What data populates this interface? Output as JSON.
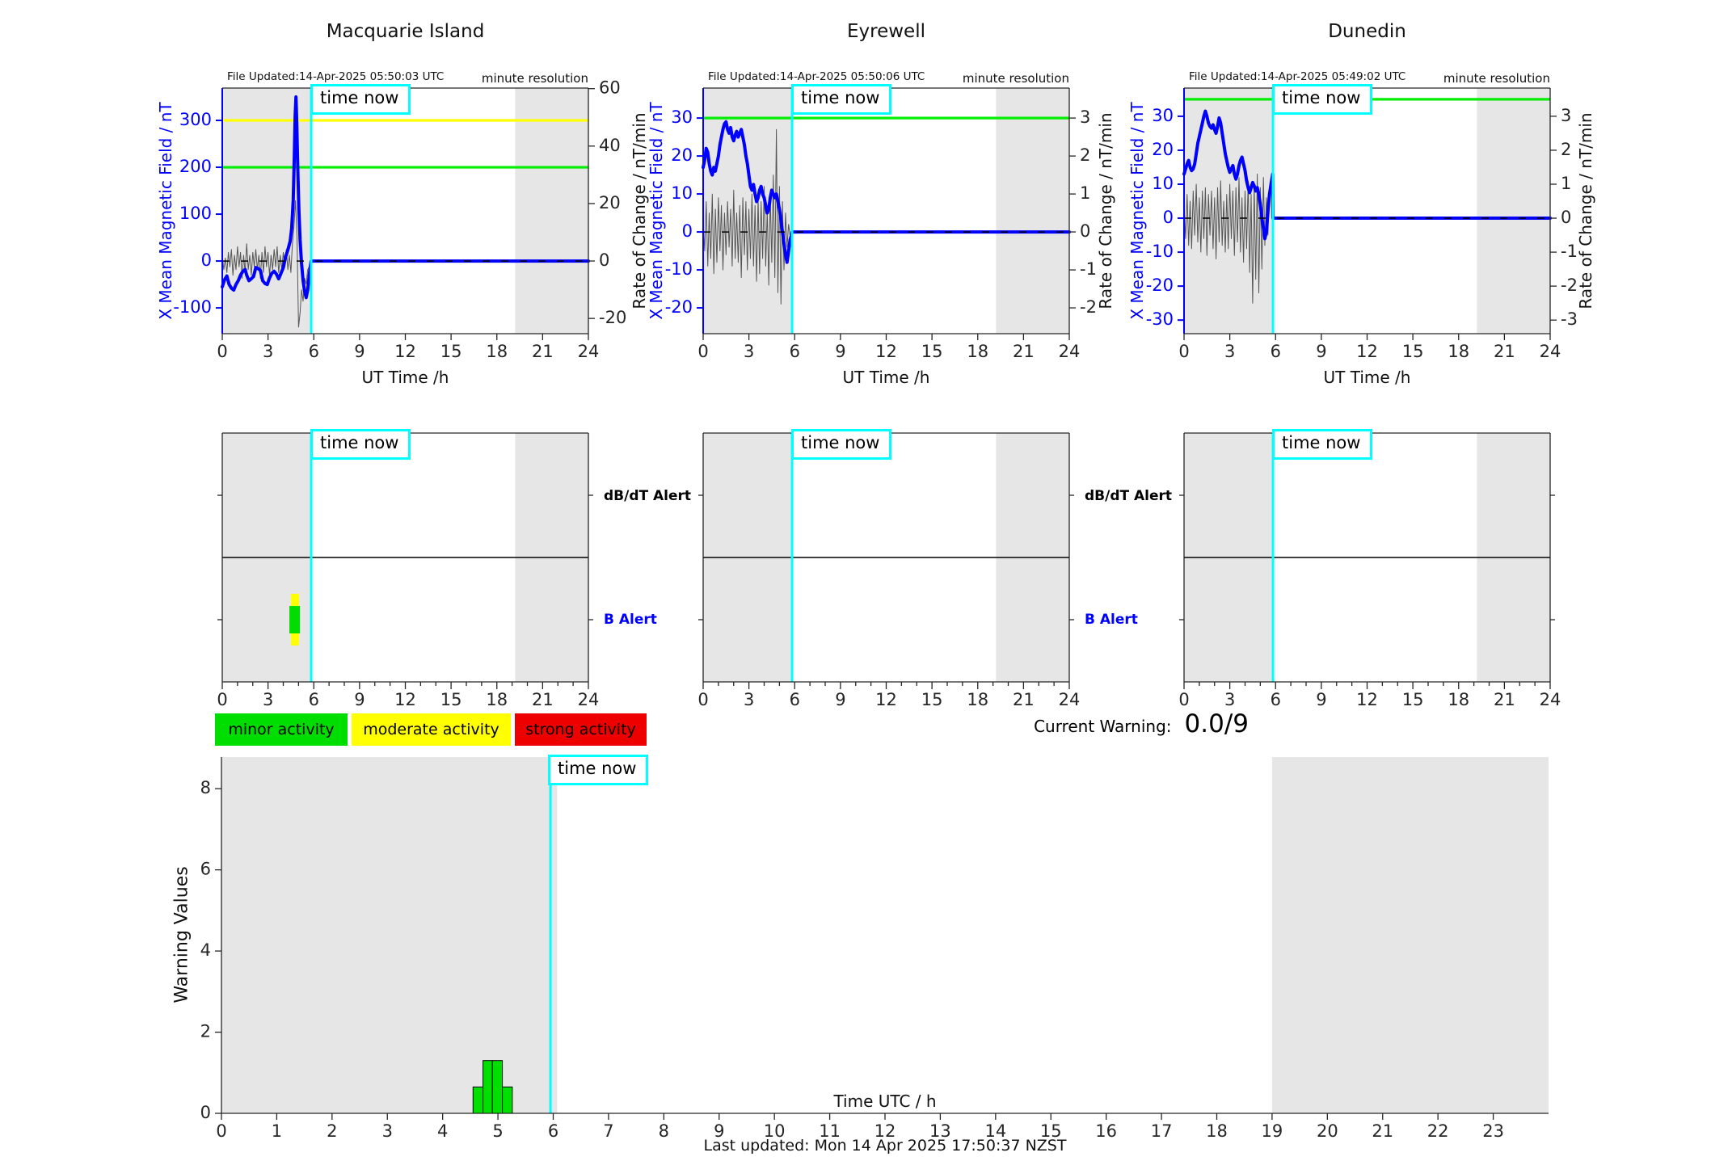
{
  "colors": {
    "field_line": "#0000ff",
    "rate_line": "#555555",
    "threshold_green": "#00ee00",
    "threshold_yellow": "#ffff00",
    "time_now_line": "#00ffff",
    "past_shade": "#e6e6e6",
    "legend_minor": "#00dd00",
    "legend_moderate": "#ffff00",
    "legend_strong": "#ee0000",
    "warning_bar": "#00e000",
    "axis": "#262626"
  },
  "stations": [
    {
      "title": "Macquarie Island",
      "file_updated": "File Updated:14-Apr-2025 05:50:03 UTC",
      "minute_resolution": "minute resolution",
      "time_now": "time now",
      "xlabel": "UT Time /h",
      "ylabel_left": "X Mean Magnetic Field / nT",
      "ylabel_right": "Rate of Change / nT/min",
      "alert_rows": {
        "db_dt": "dB/dT Alert",
        "b": "B Alert"
      }
    },
    {
      "title": "Eyrewell",
      "file_updated": "File Updated:14-Apr-2025 05:50:06 UTC",
      "minute_resolution": "minute resolution",
      "time_now": "time now",
      "xlabel": "UT Time /h",
      "ylabel_left": "X Mean Magnetic Field / nT",
      "ylabel_right": "Rate of Change / nT/min",
      "alert_rows": {
        "db_dt": "dB/dT Alert",
        "b": "B Alert"
      }
    },
    {
      "title": "Dunedin",
      "file_updated": "File Updated:14-Apr-2025 05:49:02 UTC",
      "minute_resolution": "minute resolution",
      "time_now": "time now",
      "xlabel": "UT Time /h",
      "ylabel_left": "X Mean Magnetic Field / nT",
      "ylabel_right": "Rate of Change / nT/min",
      "alert_rows": {
        "db_dt": "dB/dT Alert",
        "b": "B Alert"
      }
    }
  ],
  "legend": {
    "minor": "minor activity",
    "moderate": "moderate activity",
    "strong": "strong activity"
  },
  "current_warning": {
    "label": "Current Warning:",
    "value": "0.0/9"
  },
  "bottom": {
    "ylabel": "Warning Values",
    "xlabel": "Time UTC / h",
    "time_now": "time now"
  },
  "footer": {
    "last_updated": "Last updated: Mon 14 Apr 2025 17:50:37 NZST"
  },
  "chart_data": [
    {
      "type": "line",
      "title": "Macquarie Island",
      "xlabel": "UT Time /h",
      "ylabel_left": "X Mean Magnetic Field / nT",
      "ylabel_right": "Rate of Change / nT/min",
      "xlim": [
        0,
        24
      ],
      "xticks": [
        0,
        3,
        6,
        9,
        12,
        15,
        18,
        21,
        24
      ],
      "ylim_left": [
        -155,
        369
      ],
      "yticks_left": [
        -100,
        0,
        100,
        200,
        300
      ],
      "ylim_right": [
        -25.3,
        60.2
      ],
      "yticks_right": [
        -20,
        0,
        20,
        40,
        60
      ],
      "threshold_yellow": 300,
      "threshold_green": 200,
      "time_now_h": 5.83,
      "past_shade": [
        0,
        5.83
      ],
      "forecast_shade": [
        19.2,
        24
      ],
      "field_points": [
        [
          0,
          -55
        ],
        [
          0.15,
          -40
        ],
        [
          0.3,
          -32
        ],
        [
          0.45,
          -50
        ],
        [
          0.6,
          -58
        ],
        [
          0.75,
          -62
        ],
        [
          0.9,
          -50
        ],
        [
          1.05,
          -42
        ],
        [
          1.2,
          -30
        ],
        [
          1.35,
          -22
        ],
        [
          1.5,
          -18
        ],
        [
          1.6,
          -30
        ],
        [
          1.75,
          -42
        ],
        [
          1.9,
          -38
        ],
        [
          2.05,
          -33
        ],
        [
          2.2,
          -14
        ],
        [
          2.35,
          -16
        ],
        [
          2.5,
          -20
        ],
        [
          2.65,
          -42
        ],
        [
          2.8,
          -48
        ],
        [
          2.95,
          -50
        ],
        [
          3.1,
          -36
        ],
        [
          3.25,
          -26
        ],
        [
          3.4,
          -22
        ],
        [
          3.55,
          -28
        ],
        [
          3.7,
          -38
        ],
        [
          3.85,
          -26
        ],
        [
          4.0,
          -14
        ],
        [
          4.15,
          8
        ],
        [
          4.3,
          24
        ],
        [
          4.45,
          42
        ],
        [
          4.55,
          70
        ],
        [
          4.65,
          130
        ],
        [
          4.72,
          220
        ],
        [
          4.78,
          310
        ],
        [
          4.83,
          350
        ],
        [
          4.88,
          300
        ],
        [
          4.95,
          200
        ],
        [
          5.02,
          110
        ],
        [
          5.1,
          45
        ],
        [
          5.2,
          -5
        ],
        [
          5.3,
          -42
        ],
        [
          5.4,
          -65
        ],
        [
          5.5,
          -78
        ],
        [
          5.6,
          -62
        ],
        [
          5.7,
          -30
        ],
        [
          5.78,
          -10
        ],
        [
          5.83,
          0
        ],
        [
          24,
          0
        ]
      ],
      "rate_t0": 0,
      "rate_dt": 0.1,
      "rate_values": [
        2,
        -3,
        1,
        -4,
        3,
        -2,
        4,
        -5,
        2,
        -3,
        5,
        -2,
        3,
        -6,
        2,
        -4,
        6,
        -3,
        2,
        -5,
        3,
        -2,
        4,
        -3,
        2,
        -6,
        3,
        -4,
        5,
        -2,
        3,
        -5,
        2,
        -3,
        4,
        -2,
        5,
        -4,
        2,
        -3,
        3,
        -2,
        4,
        -3,
        2,
        -4,
        6,
        12,
        21,
        8,
        -23,
        -18,
        -10,
        -14,
        -6,
        -8,
        -3,
        -2,
        -1
      ]
    },
    {
      "type": "line",
      "title": "Eyrewell",
      "xlabel": "UT Time /h",
      "ylabel_left": "X Mean Magnetic Field / nT",
      "ylabel_right": "Rate of Change / nT/min",
      "xlim": [
        0,
        24
      ],
      "xticks": [
        0,
        3,
        6,
        9,
        12,
        15,
        18,
        21,
        24
      ],
      "ylim_left": [
        -26.8,
        37.9
      ],
      "yticks_left": [
        -20,
        -10,
        0,
        10,
        20,
        30
      ],
      "ylim_right": [
        -2.68,
        3.79
      ],
      "yticks_right": [
        -2,
        -1,
        0,
        1,
        2,
        3
      ],
      "threshold_green": 30,
      "time_now_h": 5.83,
      "past_shade": [
        0,
        5.83
      ],
      "forecast_shade": [
        19.2,
        24
      ],
      "field_points": [
        [
          0,
          17
        ],
        [
          0.1,
          19
        ],
        [
          0.2,
          22
        ],
        [
          0.3,
          21
        ],
        [
          0.4,
          18
        ],
        [
          0.5,
          16
        ],
        [
          0.6,
          15
        ],
        [
          0.7,
          17
        ],
        [
          0.8,
          16
        ],
        [
          0.9,
          18
        ],
        [
          1.0,
          20
        ],
        [
          1.1,
          23
        ],
        [
          1.2,
          25
        ],
        [
          1.3,
          27
        ],
        [
          1.4,
          28.5
        ],
        [
          1.5,
          29
        ],
        [
          1.6,
          27
        ],
        [
          1.7,
          26
        ],
        [
          1.8,
          27.5
        ],
        [
          1.9,
          25
        ],
        [
          2.0,
          24
        ],
        [
          2.1,
          25.5
        ],
        [
          2.2,
          26.5
        ],
        [
          2.3,
          25
        ],
        [
          2.4,
          26
        ],
        [
          2.5,
          27
        ],
        [
          2.6,
          25
        ],
        [
          2.7,
          23
        ],
        [
          2.8,
          20
        ],
        [
          2.9,
          18
        ],
        [
          3.0,
          15
        ],
        [
          3.1,
          12
        ],
        [
          3.2,
          11
        ],
        [
          3.3,
          12.5
        ],
        [
          3.4,
          10
        ],
        [
          3.5,
          8
        ],
        [
          3.6,
          9
        ],
        [
          3.7,
          11
        ],
        [
          3.8,
          12
        ],
        [
          3.9,
          10
        ],
        [
          4.0,
          9
        ],
        [
          4.1,
          7
        ],
        [
          4.2,
          5
        ],
        [
          4.3,
          6
        ],
        [
          4.4,
          9
        ],
        [
          4.5,
          11
        ],
        [
          4.6,
          10
        ],
        [
          4.7,
          9
        ],
        [
          4.8,
          10
        ],
        [
          4.9,
          8
        ],
        [
          5.0,
          6
        ],
        [
          5.1,
          3
        ],
        [
          5.2,
          0
        ],
        [
          5.3,
          -3
        ],
        [
          5.4,
          -6
        ],
        [
          5.5,
          -8
        ],
        [
          5.6,
          -5
        ],
        [
          5.7,
          -2
        ],
        [
          5.78,
          -1
        ],
        [
          5.83,
          0
        ],
        [
          24,
          0
        ]
      ],
      "rate_t0": 0,
      "rate_dt": 0.1,
      "rate_values": [
        0.3,
        -0.5,
        0.8,
        -0.9,
        0.5,
        -0.7,
        1.0,
        -1.1,
        0.6,
        -0.8,
        0.9,
        -0.5,
        0.7,
        -1.0,
        0.5,
        -0.6,
        0.8,
        -0.4,
        0.6,
        -0.9,
        1.1,
        -0.7,
        0.5,
        -0.8,
        0.7,
        -1.2,
        0.9,
        -0.6,
        0.8,
        -1.0,
        0.6,
        -0.7,
        1.0,
        -0.9,
        0.7,
        -1.3,
        0.9,
        -1.1,
        0.8,
        -0.7,
        1.2,
        -0.9,
        0.6,
        -1.4,
        1.0,
        -0.8,
        1.5,
        -1.2,
        2.7,
        -1.6,
        1.2,
        -1.9,
        0.8,
        -1.0,
        0.5,
        -0.4,
        0.2,
        -0.1,
        0
      ]
    },
    {
      "type": "line",
      "title": "Dunedin",
      "xlabel": "UT Time /h",
      "ylabel_left": "X Mean Magnetic Field / nT",
      "ylabel_right": "Rate of Change / nT/min",
      "xlim": [
        0,
        24
      ],
      "xticks": [
        0,
        3,
        6,
        9,
        12,
        15,
        18,
        21,
        24
      ],
      "ylim_left": [
        -34,
        38.3
      ],
      "yticks_left": [
        -30,
        -20,
        -10,
        0,
        10,
        20,
        30
      ],
      "ylim_right": [
        -3.4,
        3.83
      ],
      "yticks_right": [
        -3,
        -2,
        -1,
        0,
        1,
        2,
        3
      ],
      "threshold_green": 35,
      "time_now_h": 5.83,
      "past_shade": [
        0,
        5.83
      ],
      "forecast_shade": [
        19.2,
        24
      ],
      "field_points": [
        [
          0,
          13
        ],
        [
          0.1,
          14.5
        ],
        [
          0.2,
          16
        ],
        [
          0.3,
          17
        ],
        [
          0.4,
          15
        ],
        [
          0.5,
          14
        ],
        [
          0.6,
          14.5
        ],
        [
          0.7,
          16
        ],
        [
          0.8,
          19
        ],
        [
          0.9,
          22
        ],
        [
          1.0,
          24
        ],
        [
          1.1,
          26
        ],
        [
          1.2,
          28
        ],
        [
          1.3,
          30
        ],
        [
          1.4,
          31.5
        ],
        [
          1.5,
          30
        ],
        [
          1.6,
          28
        ],
        [
          1.7,
          27
        ],
        [
          1.8,
          26.5
        ],
        [
          1.9,
          27.5
        ],
        [
          2.0,
          26
        ],
        [
          2.1,
          25
        ],
        [
          2.2,
          27
        ],
        [
          2.3,
          29.5
        ],
        [
          2.4,
          28
        ],
        [
          2.5,
          25
        ],
        [
          2.6,
          22
        ],
        [
          2.7,
          19
        ],
        [
          2.8,
          17
        ],
        [
          2.9,
          15
        ],
        [
          3.0,
          13.5
        ],
        [
          3.1,
          14.5
        ],
        [
          3.2,
          15.5
        ],
        [
          3.3,
          13
        ],
        [
          3.4,
          11.5
        ],
        [
          3.5,
          13
        ],
        [
          3.6,
          15.5
        ],
        [
          3.7,
          17
        ],
        [
          3.8,
          18
        ],
        [
          3.9,
          16
        ],
        [
          4.0,
          14
        ],
        [
          4.1,
          11
        ],
        [
          4.2,
          9
        ],
        [
          4.3,
          7.5
        ],
        [
          4.4,
          9
        ],
        [
          4.5,
          10.5
        ],
        [
          4.6,
          9.5
        ],
        [
          4.7,
          8
        ],
        [
          4.8,
          9
        ],
        [
          4.9,
          7
        ],
        [
          5.0,
          4
        ],
        [
          5.1,
          0
        ],
        [
          5.2,
          -3
        ],
        [
          5.3,
          -6
        ],
        [
          5.4,
          -4
        ],
        [
          5.5,
          2
        ],
        [
          5.6,
          7
        ],
        [
          5.7,
          10
        ],
        [
          5.81,
          13
        ],
        [
          5.83,
          0
        ],
        [
          24,
          0
        ]
      ],
      "rate_t0": 0,
      "rate_dt": 0.1,
      "rate_values": [
        0.4,
        -0.6,
        0.7,
        -0.8,
        0.5,
        -0.9,
        0.8,
        -0.5,
        1.0,
        -0.7,
        0.6,
        -1.0,
        0.8,
        -0.6,
        0.9,
        -1.1,
        0.7,
        -0.5,
        0.8,
        -0.9,
        0.6,
        -1.2,
        0.9,
        -0.7,
        1.1,
        -0.8,
        0.5,
        -1.0,
        0.7,
        -0.9,
        1.0,
        -0.6,
        0.8,
        -1.1,
        0.9,
        -0.7,
        1.2,
        -1.0,
        0.6,
        -1.3,
        0.8,
        -0.9,
        1.1,
        -1.6,
        0.7,
        -2.5,
        1.0,
        -1.8,
        1.3,
        -2.2,
        0.9,
        -1.5,
        1.2,
        -0.8,
        0.6,
        -0.5,
        0.9,
        1.2,
        0.5
      ]
    },
    {
      "type": "timeline",
      "title": "Macquarie Island alerts",
      "rows": [
        "dB/dT Alert",
        "B Alert"
      ],
      "xlim": [
        0,
        24
      ],
      "xticks": [
        0,
        3,
        6,
        9,
        12,
        15,
        18,
        21,
        24
      ],
      "time_now_h": 5.83,
      "past_shade": [
        0,
        5.83
      ],
      "forecast_shade": [
        19.2,
        24
      ],
      "b_alert_bars": [
        {
          "color": "#ffff00",
          "start_h": 4.5,
          "end_h": 5.03,
          "extent": "tall"
        },
        {
          "color": "#00dd00",
          "start_h": 4.4,
          "end_h": 5.09,
          "extent": "short"
        }
      ],
      "db_dt_bars": []
    },
    {
      "type": "timeline",
      "title": "Eyrewell alerts",
      "rows": [
        "dB/dT Alert",
        "B Alert"
      ],
      "xlim": [
        0,
        24
      ],
      "xticks": [
        0,
        3,
        6,
        9,
        12,
        15,
        18,
        21,
        24
      ],
      "time_now_h": 5.83,
      "past_shade": [
        0,
        5.83
      ],
      "forecast_shade": [
        19.2,
        24
      ],
      "b_alert_bars": [],
      "db_dt_bars": []
    },
    {
      "type": "timeline",
      "title": "Dunedin alerts",
      "rows": [
        "dB/dT Alert",
        "B Alert"
      ],
      "xlim": [
        0,
        24
      ],
      "xticks": [
        0,
        3,
        6,
        9,
        12,
        15,
        18,
        21,
        24
      ],
      "time_now_h": 5.83,
      "past_shade": [
        0,
        5.83
      ],
      "forecast_shade": [
        19.2,
        24
      ],
      "b_alert_bars": [],
      "db_dt_bars": []
    },
    {
      "type": "bar",
      "title": "Warning Values",
      "xlabel": "Time UTC / h",
      "ylabel": "Warning Values",
      "xlim": [
        0,
        24
      ],
      "xticks": [
        0,
        1,
        2,
        3,
        4,
        5,
        6,
        7,
        8,
        9,
        10,
        11,
        12,
        13,
        14,
        15,
        16,
        17,
        18,
        19,
        20,
        21,
        22,
        23
      ],
      "ylim": [
        0,
        8.78
      ],
      "yticks": [
        0,
        2,
        4,
        6,
        8
      ],
      "time_now_h": 5.95,
      "past_shade": [
        0,
        6.07
      ],
      "forecast_shade": [
        19,
        24
      ],
      "bars": [
        {
          "x0": 4.55,
          "x1": 4.73,
          "value": 0.65
        },
        {
          "x0": 4.73,
          "x1": 4.9,
          "value": 1.3
        },
        {
          "x0": 4.9,
          "x1": 5.08,
          "value": 1.3
        },
        {
          "x0": 5.08,
          "x1": 5.26,
          "value": 0.65
        }
      ],
      "current_warning": "0.0/9"
    }
  ]
}
